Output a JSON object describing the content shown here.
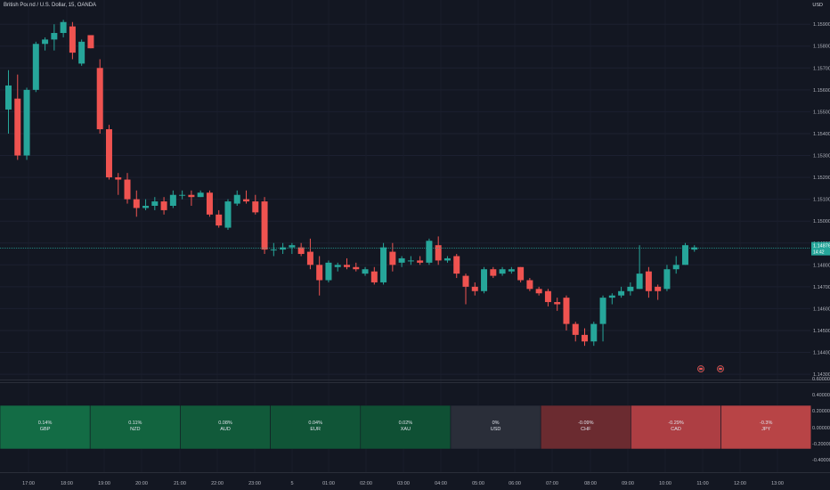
{
  "header": {
    "symbol_title": "British Pound / U.S. Dollar, 15, OANDA",
    "currency": "USD"
  },
  "price_axis": {
    "labels": [
      "1.15900",
      "1.15800",
      "1.15700",
      "1.15600",
      "1.15500",
      "1.15400",
      "1.15300",
      "1.15200",
      "1.15100",
      "1.15000",
      "1.14900",
      "1.14800",
      "1.14700",
      "1.14600",
      "1.14500",
      "1.14400",
      "1.14300"
    ],
    "last_price": "1.14876",
    "countdown": "14:42"
  },
  "indicator_axis": {
    "labels": [
      "0.60000",
      "0.40000",
      "0.20000",
      "0.00000",
      "-0.20000",
      "-0.40000"
    ]
  },
  "time_axis": {
    "labels": [
      "17:00",
      "18:00",
      "19:00",
      "20:00",
      "21:00",
      "22:00",
      "23:00",
      "5",
      "01:00",
      "02:00",
      "03:00",
      "04:00",
      "05:00",
      "06:00",
      "07:00",
      "08:00",
      "09:00",
      "10:00",
      "11:00",
      "12:00",
      "13:00"
    ]
  },
  "colors": {
    "bull": "#26a69a",
    "bear": "#ef5350",
    "background": "#131722"
  },
  "chart_data": {
    "type": "candlestick",
    "title": "British Pound / U.S. Dollar, 15, OANDA",
    "ylim": [
      1.1428,
      1.1597
    ],
    "last_price": 1.14876,
    "candles": [
      {
        "o": 1.1551,
        "h": 1.1569,
        "l": 1.154,
        "c": 1.1562
      },
      {
        "o": 1.1556,
        "h": 1.1567,
        "l": 1.1528,
        "c": 1.153
      },
      {
        "o": 1.153,
        "h": 1.1561,
        "l": 1.1528,
        "c": 1.156
      },
      {
        "o": 1.156,
        "h": 1.1582,
        "l": 1.1559,
        "c": 1.1581
      },
      {
        "o": 1.1581,
        "h": 1.1584,
        "l": 1.1578,
        "c": 1.1583
      },
      {
        "o": 1.1583,
        "h": 1.159,
        "l": 1.1578,
        "c": 1.1586
      },
      {
        "o": 1.1586,
        "h": 1.1592,
        "l": 1.1584,
        "c": 1.1591
      },
      {
        "o": 1.1589,
        "h": 1.1591,
        "l": 1.1574,
        "c": 1.1577
      },
      {
        "o": 1.1572,
        "h": 1.1583,
        "l": 1.1571,
        "c": 1.1582
      },
      {
        "o": 1.1585,
        "h": 1.1585,
        "l": 1.1579,
        "c": 1.1579
      },
      {
        "o": 1.157,
        "h": 1.1574,
        "l": 1.154,
        "c": 1.1542
      },
      {
        "o": 1.1542,
        "h": 1.1544,
        "l": 1.1519,
        "c": 1.152
      },
      {
        "o": 1.152,
        "h": 1.1522,
        "l": 1.1512,
        "c": 1.1519
      },
      {
        "o": 1.1519,
        "h": 1.1522,
        "l": 1.1508,
        "c": 1.151
      },
      {
        "o": 1.151,
        "h": 1.1514,
        "l": 1.1502,
        "c": 1.1506
      },
      {
        "o": 1.1506,
        "h": 1.151,
        "l": 1.1505,
        "c": 1.1507
      },
      {
        "o": 1.1507,
        "h": 1.1511,
        "l": 1.1505,
        "c": 1.1509
      },
      {
        "o": 1.1509,
        "h": 1.1511,
        "l": 1.1503,
        "c": 1.1505
      },
      {
        "o": 1.1507,
        "h": 1.1514,
        "l": 1.1506,
        "c": 1.1512
      },
      {
        "o": 1.1512,
        "h": 1.1514,
        "l": 1.151,
        "c": 1.1512
      },
      {
        "o": 1.1512,
        "h": 1.1514,
        "l": 1.1507,
        "c": 1.1511
      },
      {
        "o": 1.1511,
        "h": 1.1514,
        "l": 1.1511,
        "c": 1.1513
      },
      {
        "o": 1.1513,
        "h": 1.1514,
        "l": 1.1502,
        "c": 1.1503
      },
      {
        "o": 1.1503,
        "h": 1.1505,
        "l": 1.1497,
        "c": 1.1498
      },
      {
        "o": 1.1497,
        "h": 1.151,
        "l": 1.1496,
        "c": 1.1509
      },
      {
        "o": 1.1508,
        "h": 1.1514,
        "l": 1.1507,
        "c": 1.1512
      },
      {
        "o": 1.151,
        "h": 1.1514,
        "l": 1.1508,
        "c": 1.1509
      },
      {
        "o": 1.1509,
        "h": 1.1512,
        "l": 1.1503,
        "c": 1.1504
      },
      {
        "o": 1.1509,
        "h": 1.1511,
        "l": 1.1485,
        "c": 1.1487
      },
      {
        "o": 1.1487,
        "h": 1.149,
        "l": 1.1484,
        "c": 1.1487
      },
      {
        "o": 1.1487,
        "h": 1.149,
        "l": 1.1485,
        "c": 1.1488
      },
      {
        "o": 1.1488,
        "h": 1.149,
        "l": 1.1485,
        "c": 1.1489
      },
      {
        "o": 1.1488,
        "h": 1.149,
        "l": 1.1484,
        "c": 1.1485
      },
      {
        "o": 1.1486,
        "h": 1.1492,
        "l": 1.1478,
        "c": 1.148
      },
      {
        "o": 1.148,
        "h": 1.1484,
        "l": 1.1466,
        "c": 1.1473
      },
      {
        "o": 1.1473,
        "h": 1.1482,
        "l": 1.1472,
        "c": 1.1481
      },
      {
        "o": 1.1479,
        "h": 1.1481,
        "l": 1.1477,
        "c": 1.148
      },
      {
        "o": 1.148,
        "h": 1.1483,
        "l": 1.1478,
        "c": 1.1479
      },
      {
        "o": 1.1479,
        "h": 1.1481,
        "l": 1.1477,
        "c": 1.1478
      },
      {
        "o": 1.1476,
        "h": 1.1479,
        "l": 1.1475,
        "c": 1.1478
      },
      {
        "o": 1.1477,
        "h": 1.1479,
        "l": 1.1471,
        "c": 1.1472
      },
      {
        "o": 1.1472,
        "h": 1.149,
        "l": 1.1471,
        "c": 1.1488
      },
      {
        "o": 1.1486,
        "h": 1.149,
        "l": 1.1477,
        "c": 1.148
      },
      {
        "o": 1.1481,
        "h": 1.1484,
        "l": 1.1479,
        "c": 1.1483
      },
      {
        "o": 1.1482,
        "h": 1.1484,
        "l": 1.148,
        "c": 1.1482
      },
      {
        "o": 1.1482,
        "h": 1.1484,
        "l": 1.148,
        "c": 1.1481
      },
      {
        "o": 1.1481,
        "h": 1.1492,
        "l": 1.148,
        "c": 1.1491
      },
      {
        "o": 1.1489,
        "h": 1.1493,
        "l": 1.148,
        "c": 1.1482
      },
      {
        "o": 1.1482,
        "h": 1.1484,
        "l": 1.1481,
        "c": 1.1483
      },
      {
        "o": 1.1484,
        "h": 1.1485,
        "l": 1.1474,
        "c": 1.1476
      },
      {
        "o": 1.1475,
        "h": 1.1476,
        "l": 1.1462,
        "c": 1.147
      },
      {
        "o": 1.147,
        "h": 1.1472,
        "l": 1.1466,
        "c": 1.1468
      },
      {
        "o": 1.1468,
        "h": 1.1479,
        "l": 1.1467,
        "c": 1.1478
      },
      {
        "o": 1.1478,
        "h": 1.1479,
        "l": 1.1474,
        "c": 1.1475
      },
      {
        "o": 1.1476,
        "h": 1.1479,
        "l": 1.1475,
        "c": 1.1478
      },
      {
        "o": 1.1477,
        "h": 1.1479,
        "l": 1.1476,
        "c": 1.1478
      },
      {
        "o": 1.1479,
        "h": 1.1479,
        "l": 1.1472,
        "c": 1.1473
      },
      {
        "o": 1.1473,
        "h": 1.1474,
        "l": 1.1468,
        "c": 1.1469
      },
      {
        "o": 1.1469,
        "h": 1.147,
        "l": 1.1466,
        "c": 1.1467
      },
      {
        "o": 1.1468,
        "h": 1.1469,
        "l": 1.1461,
        "c": 1.1463
      },
      {
        "o": 1.1463,
        "h": 1.1465,
        "l": 1.1459,
        "c": 1.1462
      },
      {
        "o": 1.1465,
        "h": 1.1466,
        "l": 1.145,
        "c": 1.1453
      },
      {
        "o": 1.1453,
        "h": 1.1454,
        "l": 1.1445,
        "c": 1.1448
      },
      {
        "o": 1.1448,
        "h": 1.1451,
        "l": 1.1443,
        "c": 1.1445
      },
      {
        "o": 1.1445,
        "h": 1.1454,
        "l": 1.1443,
        "c": 1.1453
      },
      {
        "o": 1.1453,
        "h": 1.1466,
        "l": 1.1445,
        "c": 1.1465
      },
      {
        "o": 1.1465,
        "h": 1.1467,
        "l": 1.1462,
        "c": 1.1466
      },
      {
        "o": 1.1466,
        "h": 1.147,
        "l": 1.1465,
        "c": 1.1468
      },
      {
        "o": 1.1468,
        "h": 1.1472,
        "l": 1.1466,
        "c": 1.147
      },
      {
        "o": 1.1469,
        "h": 1.1489,
        "l": 1.1469,
        "c": 1.1476
      },
      {
        "o": 1.1477,
        "h": 1.1479,
        "l": 1.1465,
        "c": 1.1468
      },
      {
        "o": 1.147,
        "h": 1.1471,
        "l": 1.1464,
        "c": 1.1468
      },
      {
        "o": 1.1469,
        "h": 1.148,
        "l": 1.1468,
        "c": 1.1478
      },
      {
        "o": 1.1478,
        "h": 1.1484,
        "l": 1.1476,
        "c": 1.148
      },
      {
        "o": 1.148,
        "h": 1.149,
        "l": 1.148,
        "c": 1.1489
      },
      {
        "o": 1.1487,
        "h": 1.1489,
        "l": 1.1486,
        "c": 1.1488
      }
    ],
    "heatmap": [
      {
        "label": "GBP",
        "value": "0.14%"
      },
      {
        "label": "NZD",
        "value": "0.11%"
      },
      {
        "label": "AUD",
        "value": "0.08%"
      },
      {
        "label": "EUR",
        "value": "0.04%"
      },
      {
        "label": "XAU",
        "value": "0.02%"
      },
      {
        "label": "USD",
        "value": "0%"
      },
      {
        "label": "CHF",
        "value": "-0.09%"
      },
      {
        "label": "CAD",
        "value": "-0.29%"
      },
      {
        "label": "JPY",
        "value": "-0.3%"
      }
    ],
    "heatmap_colors": [
      "#136c45",
      "#12643f",
      "#115a3a",
      "#105537",
      "#0f5034",
      "#2a2e39",
      "#6b2b30",
      "#ad3e43",
      "#b84446"
    ]
  }
}
